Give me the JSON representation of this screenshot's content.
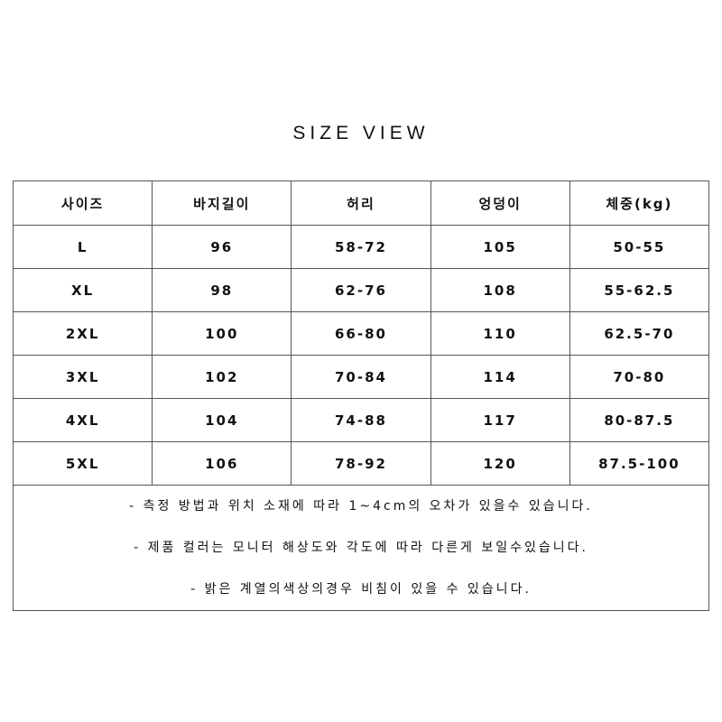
{
  "title": "SIZE VIEW",
  "table": {
    "headers": [
      "사이즈",
      "바지길이",
      "허리",
      "엉덩이",
      "체중(kg)"
    ],
    "rows": [
      [
        "L",
        "96",
        "58-72",
        "105",
        "50-55"
      ],
      [
        "XL",
        "98",
        "62-76",
        "108",
        "55-62.5"
      ],
      [
        "2XL",
        "100",
        "66-80",
        "110",
        "62.5-70"
      ],
      [
        "3XL",
        "102",
        "70-84",
        "114",
        "70-80"
      ],
      [
        "4XL",
        "104",
        "74-88",
        "117",
        "80-87.5"
      ],
      [
        "5XL",
        "106",
        "78-92",
        "120",
        "87.5-100"
      ]
    ]
  },
  "notes": [
    "- 측정 방법과 위치 소재에 따라 1~4cm의 오차가 있을수 있습니다.",
    "- 제품 컬러는 모니터 해상도와 각도에 따라 다른게 보일수있습니다.",
    "- 밝은 계열의색상의경우 비침이 있을 수 있습니다."
  ]
}
